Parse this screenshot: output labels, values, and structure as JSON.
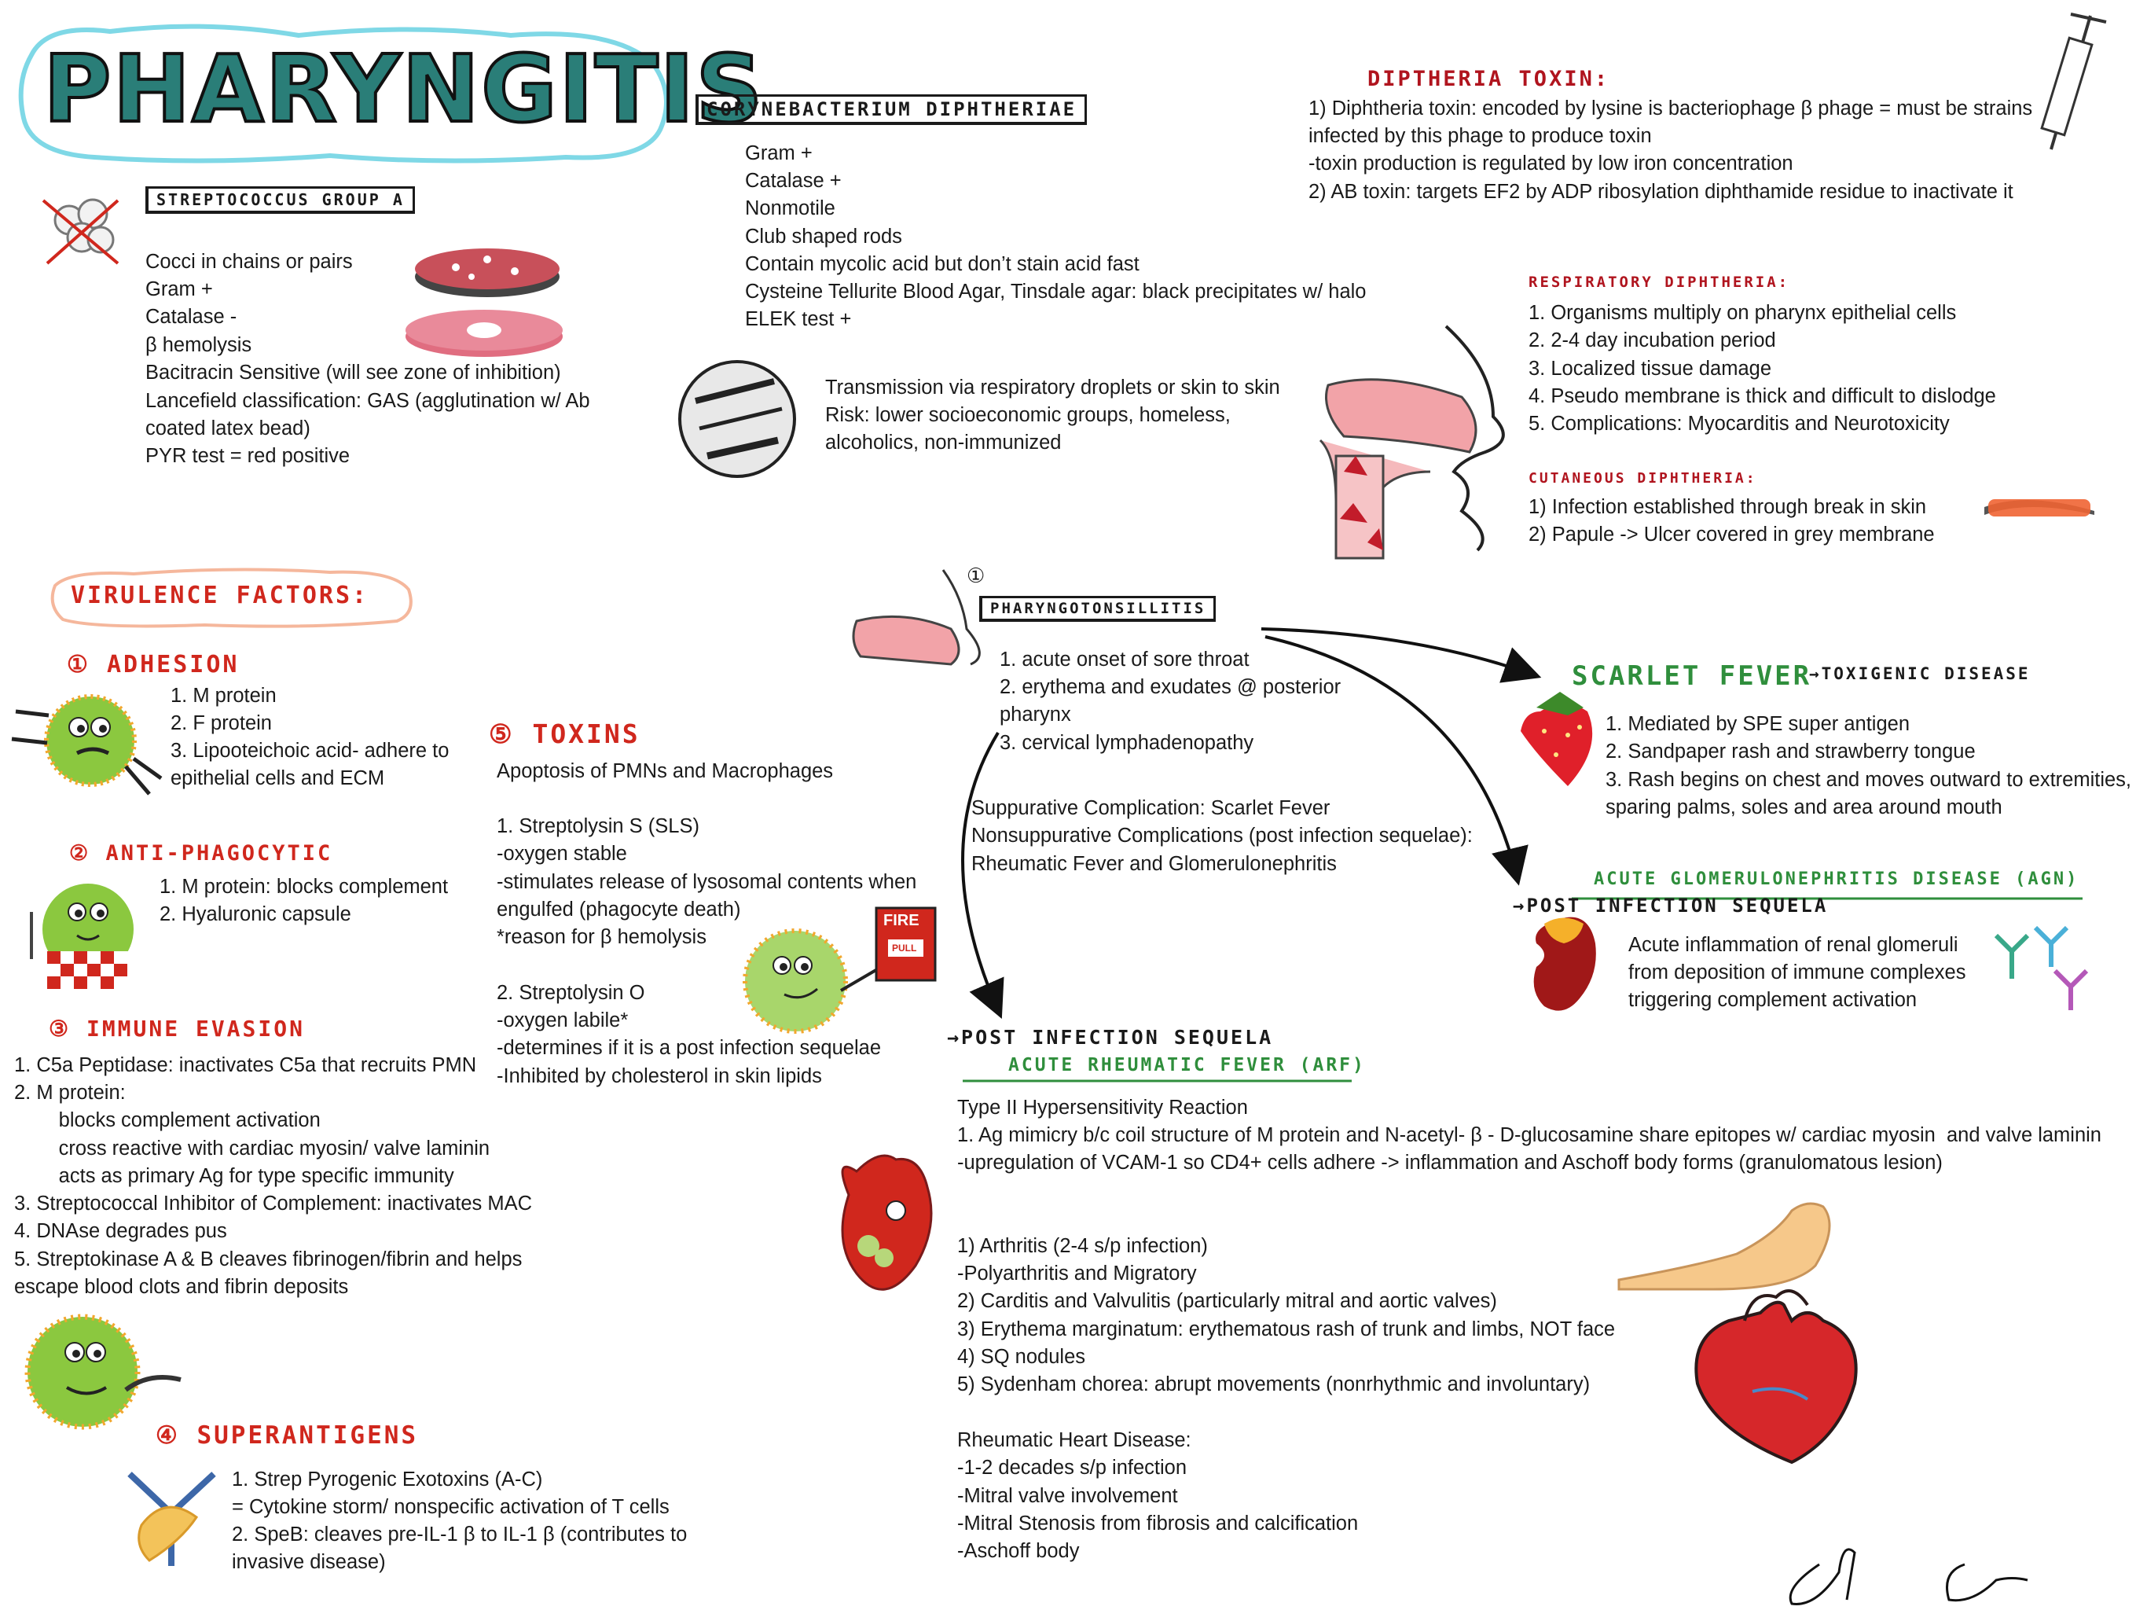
{
  "title": "PHARYNGITIS",
  "strep": {
    "heading": "STREPTOCOCCUS GROUP A",
    "lines": [
      "Cocci in chains or pairs",
      "Gram +",
      "Catalase -",
      "β hemolysis",
      "Bacitracin Sensitive (will see zone of inhibition)",
      "Lancefield classification: GAS (agglutination w/ Ab",
      "coated latex bead)",
      "PYR test = red positive"
    ]
  },
  "coryne": {
    "heading": "CORYNEBACTERIUM DIPHTHERIAE",
    "lines": [
      "Gram +",
      "Catalase +",
      "Nonmotile",
      "Club shaped rods",
      "Contain mycolic acid but don’t stain acid fast",
      "Cysteine Tellurite Blood Agar, Tinsdale agar: black precipitates w/ halo",
      "ELEK test +"
    ],
    "transmission": [
      "Transmission via respiratory droplets or skin to skin",
      "Risk: lower socioeconomic groups, homeless,",
      "alcoholics, non-immunized"
    ]
  },
  "toxin": {
    "heading": "DIPTHERIA TOXIN:",
    "lines": [
      "1) Diphtheria toxin: encoded by lysine is bacteriophage β phage = must be strains",
      "infected by this phage to produce toxin",
      "-toxin production is regulated by low iron concentration",
      "2) AB toxin: targets EF2 by ADP ribosylation diphthamide residue to inactivate it"
    ]
  },
  "resp": {
    "heading": "RESPIRATORY DIPHTHERIA:",
    "lines": [
      "1. Organisms multiply on pharynx epithelial cells",
      "2. 2-4 day incubation period",
      "3. Localized tissue damage",
      "4. Pseudo membrane is thick and difficult to dislodge",
      "5. Complications: Myocarditis and Neurotoxicity"
    ]
  },
  "cut": {
    "heading": "CUTANEOUS DIPHTHERIA:",
    "lines": [
      "1) Infection established through break in skin",
      "2) Papule -> Ulcer covered in grey membrane"
    ]
  },
  "virulence": {
    "heading": "VIRULENCE FACTORS:",
    "adhesion": {
      "heading": "① ADHESION",
      "lines": [
        "1. M protein",
        "2. F protein",
        "3. Lipooteichoic acid- adhere to",
        "epithelial cells and ECM"
      ]
    },
    "antiphago": {
      "heading": "② ANTI-PHAGOCYTIC",
      "lines": [
        "1. M protein: blocks complement",
        "2. Hyaluronic capsule"
      ]
    },
    "immune": {
      "heading": "③ IMMUNE EVASION",
      "lines": [
        "1. C5a Peptidase: inactivates C5a that recruits PMN",
        "2. M protein:",
        "        blocks complement activation",
        "        cross reactive with cardiac myosin/ valve laminin",
        "        acts as primary Ag for type specific immunity",
        "3. Streptococcal Inhibitor of Complement: inactivates MAC",
        "4. DNAse degrades pus",
        "5. Streptokinase A & B cleaves fibrinogen/fibrin and helps",
        "escape blood clots and fibrin deposits"
      ]
    },
    "superantigens": {
      "heading": "④ SUPERANTIGENS",
      "lines": [
        "1. Strep Pyrogenic Exotoxins (A-C)",
        "= Cytokine storm/ nonspecific activation of T cells",
        "2. SpeB: cleaves pre-IL-1 β to IL-1 β (contributes to",
        "invasive disease)"
      ]
    },
    "toxins": {
      "heading": "⑤ TOXINS",
      "lines": [
        "Apoptosis of PMNs and Macrophages",
        "",
        "1. Streptolysin S (SLS)",
        "-oxygen stable",
        "-stimulates release of lysosomal contents when",
        "engulfed (phagocyte death)",
        "*reason for β hemolysis",
        "",
        "2. Streptolysin O",
        "-oxygen labile*",
        "-determines if it is a post infection sequelae",
        "-Inhibited by cholesterol in skin lipids"
      ]
    }
  },
  "fire_sign": "FIRE",
  "pull_sign": "PULL",
  "pharyngo": {
    "marker": "①",
    "heading": "PHARYNGOTONSILLITIS",
    "lines": [
      "1. acute onset of sore throat",
      "2. erythema and exudates @ posterior",
      "pharynx",
      "3. cervical lymphadenopathy"
    ],
    "complications": [
      "Suppurative Complication: Scarlet Fever",
      "Nonsuppurative Complications (post infection sequelae):",
      "Rheumatic Fever and Glomerulonephritis"
    ]
  },
  "scarlet": {
    "heading": "SCARLET FEVER",
    "subheading": "→TOXIGENIC DISEASE",
    "lines": [
      "1. Mediated by SPE super antigen",
      "2. Sandpaper rash and strawberry tongue",
      "3. Rash begins on chest and moves outward to extremities,",
      "sparing palms, soles and area around mouth"
    ]
  },
  "agn": {
    "heading": "ACUTE GLOMERULONEPHRITIS DISEASE (AGN)",
    "subheading": "→POST INFECTION SEQUELA",
    "lines": [
      "Acute inflammation of renal glomeruli",
      "from deposition of immune complexes",
      "triggering complement activation"
    ]
  },
  "arf": {
    "pre": "→POST INFECTION SEQUELA",
    "heading": "ACUTE RHEUMATIC FEVER (ARF)",
    "lines": [
      "Type II Hypersensitivity Reaction",
      "1. Ag mimicry b/c coil structure of M protein and N-acetyl- β - D-glucosamine share epitopes w/ cardiac myosin  and valve laminin",
      "-upregulation of VCAM-1 so CD4+ cells adhere -> inflammation and Aschoff body forms (granulomatous lesion)"
    ],
    "manifest": [
      "1) Arthritis (2-4 s/p infection)",
      "-Polyarthritis and Migratory",
      "2) Carditis and Valvulitis (particularly mitral and aortic valves)",
      "3) Erythema marginatum: erythematous rash of trunk and limbs, NOT face",
      "4) SQ nodules",
      "5) Sydenham chorea: abrupt movements (nonrhythmic and involuntary)"
    ],
    "rhd": [
      "Rheumatic Heart Disease:",
      "-1-2 decades s/p infection",
      "-Mitral valve involvement",
      "-Mitral Stenosis from fibrosis and calcification",
      "-Aschoff body"
    ]
  },
  "colors": {
    "teal": "#2a7e78",
    "cyan_outline": "#7fd8e6",
    "red": "#d0271d",
    "green": "#2f8e3c",
    "dark_red": "#b0141e"
  }
}
